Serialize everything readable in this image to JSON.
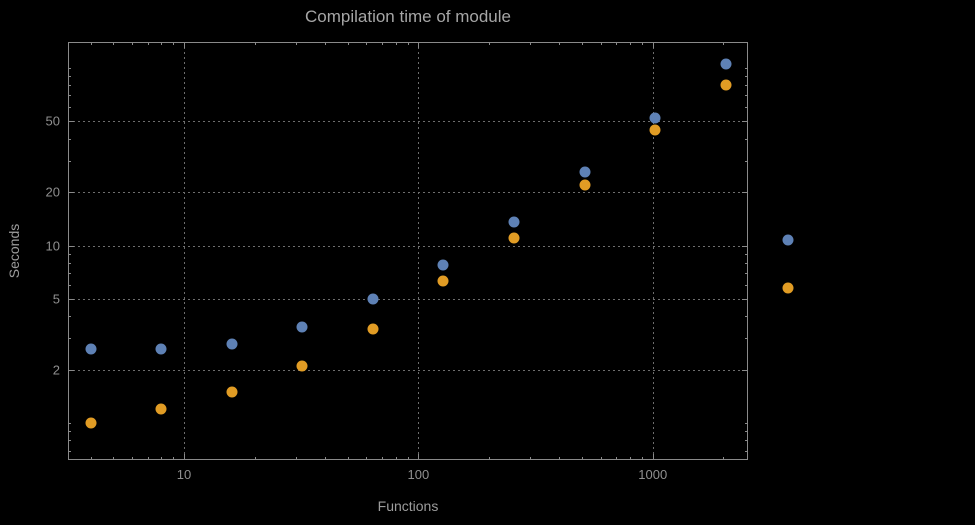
{
  "chart_data": {
    "type": "scatter",
    "title": "Compilation time of module",
    "xlabel": "Functions",
    "ylabel": "Seconds",
    "x_scale": "log",
    "y_scale": "log",
    "xlim": [
      3.2,
      2550
    ],
    "ylim": [
      0.62,
      140
    ],
    "grid": "dotted",
    "x": [
      4,
      8,
      16,
      32,
      64,
      128,
      256,
      512,
      1024,
      2048
    ],
    "series": [
      {
        "name": "blue-series",
        "color": "#5e81b5",
        "values": [
          2.6,
          2.6,
          2.8,
          3.5,
          5.0,
          7.8,
          13.5,
          26,
          52,
          105
        ]
      },
      {
        "name": "orange-series",
        "color": "#e19c24",
        "values": [
          1.0,
          1.2,
          1.5,
          2.1,
          3.4,
          6.3,
          11,
          22,
          45,
          80
        ]
      }
    ],
    "x_ticks": [
      {
        "value": 10,
        "label": "10"
      },
      {
        "value": 100,
        "label": "100"
      },
      {
        "value": 1000,
        "label": "1000"
      }
    ],
    "y_ticks": [
      {
        "value": 50,
        "label": "50"
      },
      {
        "value": 20,
        "label": "20"
      },
      {
        "value": 10,
        "label": "10"
      },
      {
        "value": 5,
        "label": "5"
      },
      {
        "value": 2,
        "label": "2"
      }
    ],
    "x_minor_ticks": [
      4,
      5,
      6,
      7,
      8,
      9,
      20,
      30,
      40,
      50,
      60,
      70,
      80,
      90,
      200,
      300,
      400,
      500,
      600,
      700,
      800,
      900,
      2000
    ],
    "y_minor_ticks": [
      0.7,
      0.8,
      0.9,
      1,
      3,
      4,
      6,
      7,
      8,
      9,
      30,
      40,
      60,
      70,
      80,
      90,
      100
    ],
    "legend": {
      "position": "right-outside",
      "markers": [
        {
          "series": "blue-series",
          "color": "#5e81b5"
        },
        {
          "series": "orange-series",
          "color": "#e19c24"
        }
      ]
    },
    "colors": {
      "background": "#000000",
      "frame": "#8a8a8a",
      "grid": "#6e6e6e",
      "text": "#9c9c9c"
    }
  }
}
